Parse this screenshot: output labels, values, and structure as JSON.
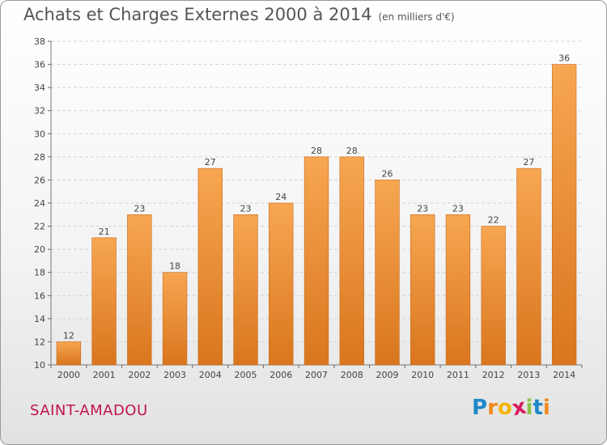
{
  "header": {
    "title": "Achats et Charges Externes 2000 à 2014",
    "unit": "(en milliers d'€)"
  },
  "footer": {
    "commune": "SAINT-AMADOU",
    "brand": {
      "letters": [
        "P",
        "r",
        "o",
        "x",
        "i",
        "t",
        "i"
      ],
      "colors": [
        "#1e88c8",
        "#f08a1c",
        "#f4b400",
        "#d81b60",
        "#8bc34a",
        "#1e88c8",
        "#f08a1c"
      ]
    }
  },
  "colors": {
    "bar_top": "#f7a651",
    "bar_bottom": "#d9761e",
    "bar_edge": "#c8691a"
  },
  "chart_data": {
    "type": "bar",
    "title": "Achats et Charges Externes 2000 à 2014",
    "subtitle": "(en milliers d'€)",
    "categories": [
      "2000",
      "2001",
      "2002",
      "2003",
      "2004",
      "2005",
      "2006",
      "2007",
      "2008",
      "2009",
      "2010",
      "2011",
      "2012",
      "2013",
      "2014"
    ],
    "values": [
      12,
      21,
      23,
      18,
      27,
      23,
      24,
      28,
      28,
      26,
      23,
      23,
      22,
      27,
      36
    ],
    "ylim": [
      10,
      38
    ],
    "yticks": [
      10,
      12,
      14,
      16,
      18,
      20,
      22,
      24,
      26,
      28,
      30,
      32,
      34,
      36,
      38
    ],
    "xlabel": "",
    "ylabel": "",
    "grid": true,
    "data_labels": true
  }
}
